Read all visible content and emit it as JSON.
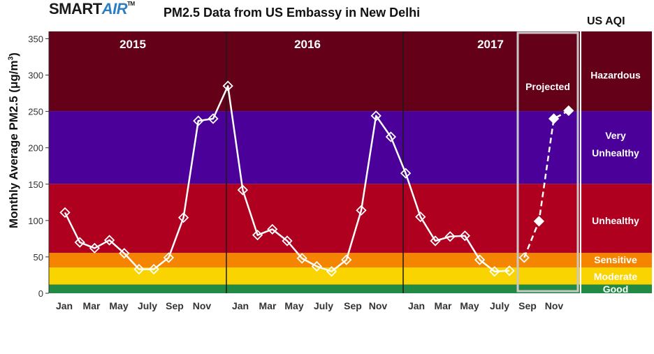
{
  "logo": {
    "smart": "SMART",
    "air": "AIR",
    "tm": "TM"
  },
  "title": "PM2.5 Data from US Embassy in New Delhi",
  "aqi_heading": "US AQI",
  "ylabel": {
    "prefix": "Monthly Average PM2.5 (",
    "unit_mu": "μg/m",
    "unit_exp": "3",
    "suffix": ")"
  },
  "projected_label": "Projected",
  "colors": {
    "hazardous": "#650019",
    "very_unhealthy": "#4a0099",
    "unhealthy": "#b0001f",
    "sensitive": "#f58400",
    "moderate": "#f9d400",
    "good": "#228a45",
    "line": "#ffffff"
  },
  "chart_data": {
    "type": "line",
    "title": "PM2.5 Data from US Embassy in New Delhi",
    "ylabel": "Monthly Average PM2.5 (μg/m3)",
    "ylim": [
      0,
      360
    ],
    "yticks": [
      0,
      50,
      100,
      150,
      200,
      250,
      300,
      350
    ],
    "panels": [
      {
        "year": "2015",
        "xticks": [
          "Jan",
          "Mar",
          "May",
          "July",
          "Sep",
          "Nov"
        ]
      },
      {
        "year": "2016",
        "xticks": [
          "Jan",
          "Mar",
          "May",
          "July",
          "Sep",
          "Nov"
        ]
      },
      {
        "year": "2017",
        "xticks": [
          "Jan",
          "Mar",
          "May",
          "July",
          "Sep",
          "Nov"
        ]
      }
    ],
    "aqi_bands": [
      {
        "name": "Good",
        "min": 0,
        "max": 12
      },
      {
        "name": "Moderate",
        "min": 12,
        "max": 35.5
      },
      {
        "name": "Sensitive",
        "min": 35.5,
        "max": 55.5
      },
      {
        "name": "Unhealthy",
        "min": 55.5,
        "max": 150.5
      },
      {
        "name": "Very Unhealthy",
        "min": 150.5,
        "max": 250.5
      },
      {
        "name": "Hazardous",
        "min": 250.5,
        "max": 360
      }
    ],
    "series": [
      {
        "values": [
          111,
          70,
          62,
          73,
          55,
          33,
          33,
          49,
          104,
          237,
          240,
          285,
          142,
          80,
          88,
          72,
          48,
          37,
          30,
          46,
          114,
          244,
          215,
          165,
          105,
          72,
          78,
          79,
          46,
          30,
          31
        ]
      },
      {
        "style": "dashed",
        "note": "Projected",
        "months": [
          "Sep",
          "Oct",
          "Nov",
          "Dec"
        ],
        "values": [
          49,
          99,
          240,
          251
        ]
      }
    ]
  }
}
